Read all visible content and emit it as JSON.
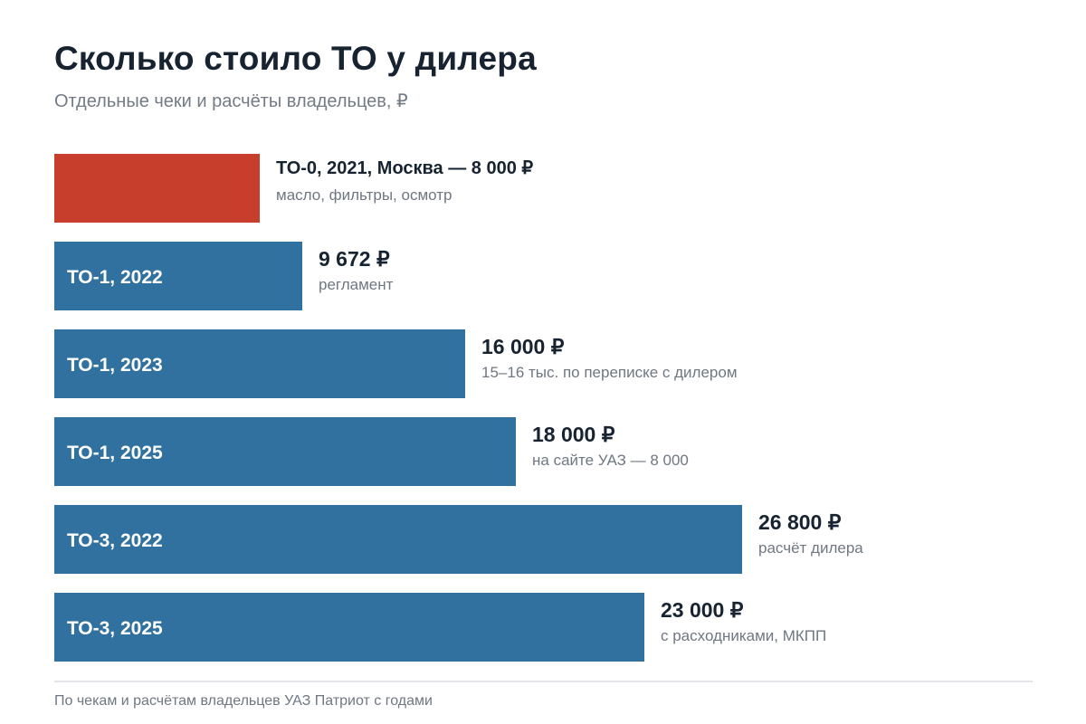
{
  "header": {
    "title": "Сколько стоило ТО у дилера",
    "subtitle": "Отдельные чеки и расчёты владельцев, ₽"
  },
  "footer": {
    "note": "По чекам и расчётам владельцев УАЗ Патриот с годами"
  },
  "colors": {
    "highlight": "#c73f2c",
    "bar": "#30719f",
    "divider": "#e3e5e8"
  },
  "chart_data": {
    "type": "bar",
    "orientation": "horizontal",
    "title": "Сколько стоило ТО у дилера",
    "subtitle": "Отдельные чеки и расчёты владельцев, ₽",
    "categories": [
      "ТО-0, 2021, Москва",
      "ТО-1, 2022",
      "ТО-1, 2023",
      "ТО-1, 2025",
      "ТО-3, 2022",
      "ТО-3, 2025"
    ],
    "values": [
      8000,
      9672,
      16000,
      18000,
      26800,
      23000
    ],
    "bars": [
      {
        "label": "",
        "value_text": "ТО-0, 2021, Москва — 8 000 ₽",
        "note": "масло, фильтры, осмотр",
        "value": 8000,
        "highlight": true
      },
      {
        "label": "ТО-1, 2022",
        "value_text": "9 672 ₽",
        "note": "регламент",
        "value": 9672,
        "highlight": false
      },
      {
        "label": "ТО-1, 2023",
        "value_text": "16 000 ₽",
        "note": "15–16 тыс. по переписке с дилером",
        "value": 16000,
        "highlight": false
      },
      {
        "label": "ТО-1, 2025",
        "value_text": "18 000 ₽",
        "note": "на сайте УАЗ — 8 000",
        "value": 18000,
        "highlight": false
      },
      {
        "label": "ТО-3, 2022",
        "value_text": "26 800 ₽",
        "note": "расчёт дилера",
        "value": 26800,
        "highlight": false
      },
      {
        "label": "ТО-3, 2025",
        "value_text": "23 000 ₽",
        "note": "с расходниками, МКПП",
        "value": 23000,
        "highlight": false
      }
    ],
    "xlim": [
      0,
      28500
    ],
    "grid": false,
    "legend": "none"
  }
}
